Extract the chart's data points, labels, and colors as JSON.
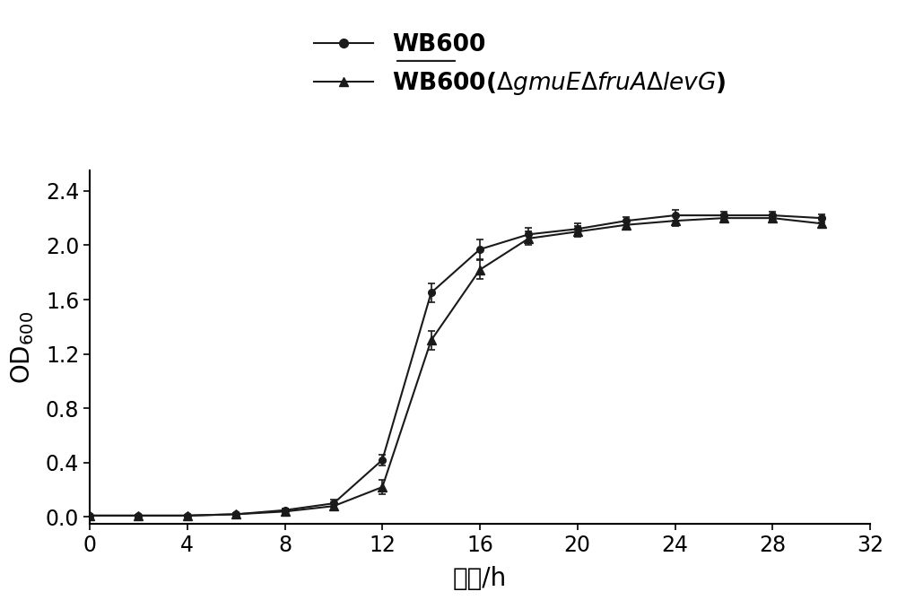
{
  "x": [
    0,
    2,
    4,
    6,
    8,
    10,
    12,
    14,
    16,
    18,
    20,
    22,
    24,
    26,
    28,
    30
  ],
  "wb600_y": [
    0.01,
    0.01,
    0.01,
    0.02,
    0.05,
    0.1,
    0.42,
    1.65,
    1.97,
    2.08,
    2.12,
    2.18,
    2.22,
    2.22,
    2.22,
    2.2
  ],
  "wb600_err": [
    0.005,
    0.005,
    0.005,
    0.008,
    0.015,
    0.025,
    0.04,
    0.07,
    0.07,
    0.05,
    0.04,
    0.03,
    0.04,
    0.03,
    0.03,
    0.03
  ],
  "mut_y": [
    0.01,
    0.01,
    0.01,
    0.02,
    0.04,
    0.08,
    0.22,
    1.3,
    1.82,
    2.05,
    2.1,
    2.15,
    2.18,
    2.2,
    2.2,
    2.16
  ],
  "mut_err": [
    0.005,
    0.005,
    0.005,
    0.008,
    0.015,
    0.025,
    0.05,
    0.07,
    0.07,
    0.05,
    0.04,
    0.03,
    0.04,
    0.03,
    0.03,
    0.03
  ],
  "xlabel": "时间/h",
  "xlim": [
    0,
    32
  ],
  "ylim": [
    -0.05,
    2.55
  ],
  "xticks": [
    0,
    4,
    8,
    12,
    16,
    20,
    24,
    28,
    32
  ],
  "yticks": [
    0.0,
    0.4,
    0.8,
    1.2,
    1.6,
    2.0,
    2.4
  ],
  "line_color": "#1a1a1a",
  "bg_color": "#ffffff",
  "legend_label1": "WB600",
  "fontsize_tick": 17,
  "fontsize_label": 20,
  "fontsize_legend": 19
}
